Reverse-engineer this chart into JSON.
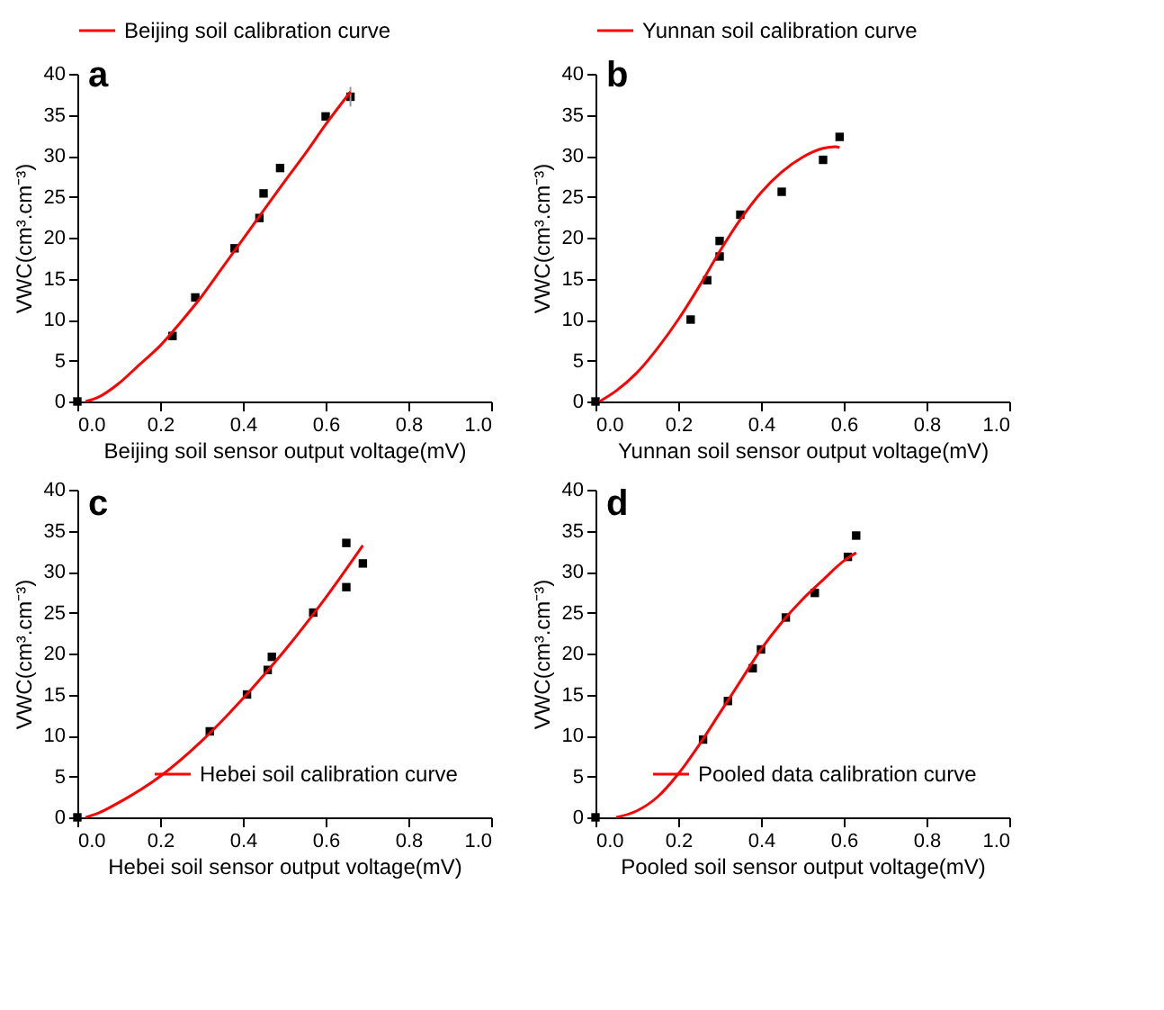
{
  "chart_data": [
    {
      "type": "scatter",
      "title": "a",
      "xlabel": "Beijing soil sensor output voltage(mV)",
      "ylabel": "VWC(cm³.cm⁻³)",
      "xlim": [
        0,
        1
      ],
      "ylim": [
        0,
        40
      ],
      "xticks": [
        {
          "value": 0,
          "label": "0.0"
        },
        {
          "value": 0.2,
          "label": "0.2"
        },
        {
          "value": 0.4,
          "label": "0.4"
        },
        {
          "value": 0.6,
          "label": "0.6"
        },
        {
          "value": 0.8,
          "label": "0.8"
        },
        {
          "value": 1,
          "label": "1.0"
        }
      ],
      "yticks": [
        0,
        5,
        10,
        15,
        20,
        25,
        30,
        35,
        40
      ],
      "grid": false,
      "legend": "top",
      "series": [
        {
          "type": "scatter",
          "color": "#000000",
          "marker": "square",
          "x": [
            0,
            0.23,
            0.285,
            0.38,
            0.44,
            0.45,
            0.49,
            0.6,
            0.66
          ],
          "values": [
            0,
            8,
            12.7,
            18.7,
            22.4,
            25.4,
            28.5,
            34.8,
            37.2
          ],
          "errors": [
            null,
            null,
            null,
            null,
            null,
            null,
            null,
            null,
            [
              36,
              38.4
            ]
          ]
        },
        {
          "type": "line",
          "name": "Beijing soil calibration curve",
          "color": "#ff0000",
          "marker": "none",
          "x": [
            0.02,
            0.05,
            0.1,
            0.15,
            0.2,
            0.25,
            0.3,
            0.35,
            0.4,
            0.45,
            0.5,
            0.55,
            0.6,
            0.66
          ],
          "values": [
            0,
            0.5,
            2.2,
            4.5,
            6.8,
            9.7,
            12.8,
            16.3,
            19.8,
            23.3,
            26.8,
            30.2,
            33.8,
            37.8
          ]
        }
      ]
    },
    {
      "type": "scatter",
      "title": "b",
      "xlabel": "Yunnan soil sensor output voltage(mV)",
      "ylabel": "VWC(cm³.cm⁻³)",
      "xlim": [
        0,
        1
      ],
      "ylim": [
        0,
        40
      ],
      "xticks": [
        {
          "value": 0,
          "label": "0.0"
        },
        {
          "value": 0.2,
          "label": "0.2"
        },
        {
          "value": 0.4,
          "label": "0.4"
        },
        {
          "value": 0.6,
          "label": "0.6"
        },
        {
          "value": 0.8,
          "label": "0.8"
        },
        {
          "value": 1,
          "label": "1.0"
        }
      ],
      "yticks": [
        0,
        5,
        10,
        15,
        20,
        25,
        30,
        35,
        40
      ],
      "grid": false,
      "legend": "top",
      "series": [
        {
          "type": "scatter",
          "color": "#000000",
          "marker": "square",
          "x": [
            0,
            0.23,
            0.27,
            0.3,
            0.3,
            0.35,
            0.45,
            0.55,
            0.59
          ],
          "values": [
            0,
            10,
            14.8,
            19.6,
            17.7,
            22.8,
            25.6,
            29.5,
            32.3
          ]
        },
        {
          "type": "line",
          "name": "Yunnan soil calibration curve",
          "color": "#ff0000",
          "marker": "none",
          "x": [
            0.01,
            0.05,
            0.1,
            0.15,
            0.2,
            0.25,
            0.3,
            0.35,
            0.4,
            0.45,
            0.5,
            0.55,
            0.58,
            0.59
          ],
          "values": [
            0,
            1.3,
            3.5,
            6.5,
            10,
            14,
            18.3,
            22.2,
            25.5,
            28,
            29.8,
            30.9,
            31.1,
            31
          ]
        }
      ]
    },
    {
      "type": "scatter",
      "title": "c",
      "xlabel": "Hebei soil sensor output voltage(mV)",
      "ylabel": "VWC(cm³.cm⁻³)",
      "xlim": [
        0,
        1
      ],
      "ylim": [
        0,
        40
      ],
      "xticks": [
        {
          "value": 0,
          "label": "0.0"
        },
        {
          "value": 0.2,
          "label": "0.2"
        },
        {
          "value": 0.4,
          "label": "0.4"
        },
        {
          "value": 0.6,
          "label": "0.6"
        },
        {
          "value": 0.8,
          "label": "0.8"
        },
        {
          "value": 1,
          "label": "1.0"
        }
      ],
      "yticks": [
        0,
        5,
        10,
        15,
        20,
        25,
        30,
        35,
        40
      ],
      "grid": false,
      "legend": "bottom right",
      "series": [
        {
          "type": "scatter",
          "color": "#000000",
          "marker": "square",
          "x": [
            0,
            0.32,
            0.41,
            0.46,
            0.47,
            0.57,
            0.65,
            0.65,
            0.69
          ],
          "values": [
            0,
            10.5,
            15,
            18,
            19.6,
            25,
            33.5,
            28.1,
            31
          ]
        },
        {
          "type": "line",
          "name": "Hebei soil calibration curve",
          "color": "#ff0000",
          "marker": "none",
          "x": [
            0.02,
            0.05,
            0.1,
            0.2,
            0.3,
            0.4,
            0.5,
            0.6,
            0.69
          ],
          "values": [
            0,
            0.5,
            1.8,
            5,
            9.3,
            14.5,
            20.3,
            26.8,
            33.2
          ]
        }
      ]
    },
    {
      "type": "scatter",
      "title": "d",
      "xlabel": "Pooled soil sensor output voltage(mV)",
      "ylabel": "VWC(cm³.cm⁻³)",
      "xlim": [
        0,
        1
      ],
      "ylim": [
        0,
        40
      ],
      "xticks": [
        {
          "value": 0,
          "label": "0.0"
        },
        {
          "value": 0.2,
          "label": "0.2"
        },
        {
          "value": 0.4,
          "label": "0.4"
        },
        {
          "value": 0.6,
          "label": "0.6"
        },
        {
          "value": 0.8,
          "label": "0.8"
        },
        {
          "value": 1,
          "label": "1.0"
        }
      ],
      "yticks": [
        0,
        5,
        10,
        15,
        20,
        25,
        30,
        35,
        40
      ],
      "grid": false,
      "legend": "bottom right",
      "series": [
        {
          "type": "scatter",
          "color": "#000000",
          "marker": "square",
          "x": [
            0,
            0.26,
            0.32,
            0.38,
            0.4,
            0.46,
            0.53,
            0.61,
            0.63
          ],
          "values": [
            0,
            9.5,
            14.2,
            18.2,
            20.5,
            24.4,
            27.4,
            31.8,
            34.4
          ]
        },
        {
          "type": "line",
          "name": "Pooled data calibration curve",
          "color": "#ff0000",
          "marker": "none",
          "x": [
            0.05,
            0.1,
            0.15,
            0.2,
            0.25,
            0.3,
            0.35,
            0.4,
            0.45,
            0.5,
            0.55,
            0.6,
            0.63
          ],
          "values": [
            0,
            0.8,
            2.5,
            5.3,
            8.8,
            12.7,
            16.6,
            20.5,
            23.8,
            26.6,
            29,
            31.3,
            32.3
          ]
        }
      ]
    }
  ]
}
